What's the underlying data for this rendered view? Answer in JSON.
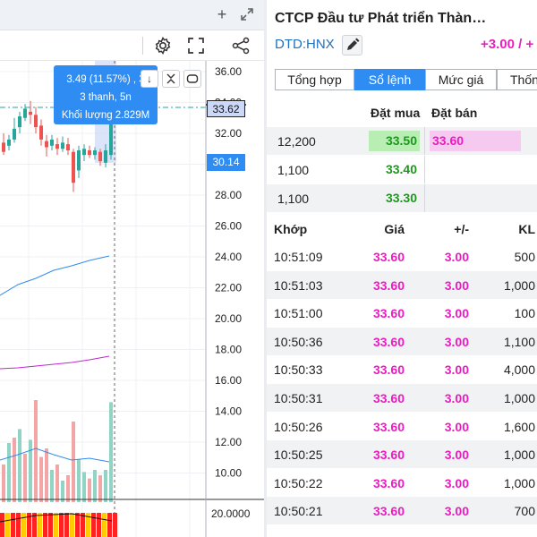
{
  "chart": {
    "axis_labels": [
      "36.00",
      "34.00",
      "32.00",
      "30.00",
      "28.00",
      "26.00",
      "24.00",
      "22.00",
      "20.00",
      "18.00",
      "16.00",
      "14.00",
      "12.00",
      "10.00"
    ],
    "indicator_axis_label": "20.0000",
    "price_tag_high": "33.62",
    "price_tag_current": "30.14",
    "tooltip": {
      "line1": "3.49 (11.57%) , 3",
      "line2": "3 thanh, 5n",
      "line3": "Khối lượng 2.829M"
    },
    "colors": {
      "up": "#26a69a",
      "down": "#ef5350",
      "ma_blue": "#2f8cf2",
      "ma_purple": "#c026d3"
    }
  },
  "stock": {
    "title": "CTCP Đầu tư Phát triển Thàn…",
    "ticker": "DTD:HNX",
    "change": "+3.00 / +"
  },
  "tabs": [
    {
      "label": "Tổng hợp",
      "active": false
    },
    {
      "label": "Sổ lệnh",
      "active": true
    },
    {
      "label": "Mức giá",
      "active": false
    },
    {
      "label": "Thống",
      "active": false
    }
  ],
  "orderbook": {
    "header_buy": "Đặt mua",
    "header_sell": "Đặt bán",
    "rows": [
      {
        "qty": "12,200",
        "buy": "33.50",
        "sell": "33.60"
      },
      {
        "qty": "1,100",
        "buy": "33.40",
        "sell": ""
      },
      {
        "qty": "1,100",
        "buy": "33.30",
        "sell": ""
      }
    ]
  },
  "trades": {
    "headers": {
      "time": "Khớp",
      "price": "Giá",
      "change": "+/-",
      "volume": "KL"
    },
    "rows": [
      {
        "time": "10:51:09",
        "price": "33.60",
        "change": "3.00",
        "volume": "500"
      },
      {
        "time": "10:51:03",
        "price": "33.60",
        "change": "3.00",
        "volume": "1,000"
      },
      {
        "time": "10:51:00",
        "price": "33.60",
        "change": "3.00",
        "volume": "100"
      },
      {
        "time": "10:50:36",
        "price": "33.60",
        "change": "3.00",
        "volume": "1,100"
      },
      {
        "time": "10:50:33",
        "price": "33.60",
        "change": "3.00",
        "volume": "4,000"
      },
      {
        "time": "10:50:31",
        "price": "33.60",
        "change": "3.00",
        "volume": "1,000"
      },
      {
        "time": "10:50:26",
        "price": "33.60",
        "change": "3.00",
        "volume": "1,600"
      },
      {
        "time": "10:50:25",
        "price": "33.60",
        "change": "3.00",
        "volume": "1,000"
      },
      {
        "time": "10:50:22",
        "price": "33.60",
        "change": "3.00",
        "volume": "1,000"
      },
      {
        "time": "10:50:21",
        "price": "33.60",
        "change": "3.00",
        "volume": "700"
      }
    ]
  }
}
